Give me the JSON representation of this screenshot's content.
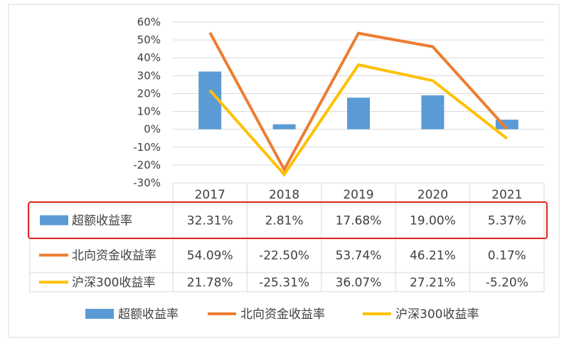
{
  "chart_data": {
    "type": "bar+line",
    "categories": [
      "2017",
      "2018",
      "2019",
      "2020",
      "2021"
    ],
    "y_axis": {
      "min": -30,
      "max": 60,
      "step": 10,
      "tick_labels": [
        "60%",
        "50%",
        "40%",
        "30%",
        "20%",
        "10%",
        "0%",
        "-10%",
        "-20%",
        "-30%"
      ]
    },
    "series": [
      {
        "name": "超额收益率",
        "kind": "bar",
        "color": "#5B9BD5",
        "values": [
          32.31,
          2.81,
          17.68,
          19.0,
          5.37
        ],
        "labels": [
          "32.31%",
          "2.81%",
          "17.68%",
          "19.00%",
          "5.37%"
        ],
        "highlighted": true
      },
      {
        "name": "北向资金收益率",
        "kind": "line",
        "color": "#ED7D31",
        "values": [
          54.09,
          -22.5,
          53.74,
          46.21,
          0.17
        ],
        "labels": [
          "54.09%",
          "-22.50%",
          "53.74%",
          "46.21%",
          "0.17%"
        ]
      },
      {
        "name": "沪深300收益率",
        "kind": "line",
        "color": "#FFC000",
        "values": [
          21.78,
          -25.31,
          36.07,
          27.21,
          -5.2
        ],
        "labels": [
          "21.78%",
          "-25.31%",
          "36.07%",
          "27.21%",
          "-5.20%"
        ]
      }
    ],
    "highlight_color": "#E32626",
    "legend_position": "bottom"
  }
}
